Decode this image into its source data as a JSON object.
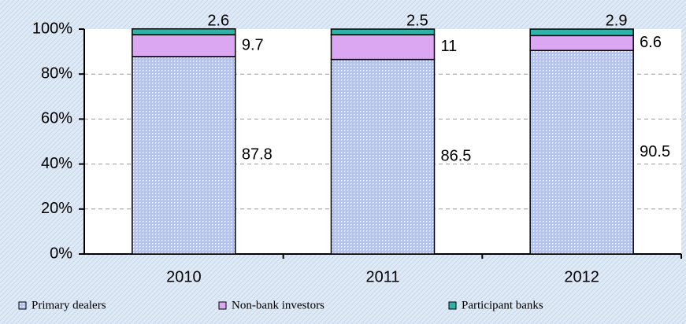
{
  "chart_data": {
    "type": "stacked_bar",
    "categories": [
      "2010",
      "2011",
      "2012"
    ],
    "series": [
      {
        "name": "Primary dealers",
        "color": "#b4c2ec",
        "values": [
          87.8,
          86.5,
          90.5
        ]
      },
      {
        "name": "Non-bank investors",
        "color": "#dba6f2",
        "values": [
          9.7,
          11.0,
          6.6
        ]
      },
      {
        "name": "Participant banks",
        "color": "#2fb3a8",
        "values": [
          2.6,
          2.5,
          2.9
        ]
      }
    ],
    "ylim": [
      0,
      100
    ],
    "yticks": [
      {
        "value": 0,
        "label": "0%"
      },
      {
        "value": 20,
        "label": "20%"
      },
      {
        "value": 40,
        "label": "40%"
      },
      {
        "value": 60,
        "label": "60%"
      },
      {
        "value": 80,
        "label": "80%"
      },
      {
        "value": 100,
        "label": "100%"
      }
    ],
    "grid": true,
    "legend": "bottom"
  }
}
